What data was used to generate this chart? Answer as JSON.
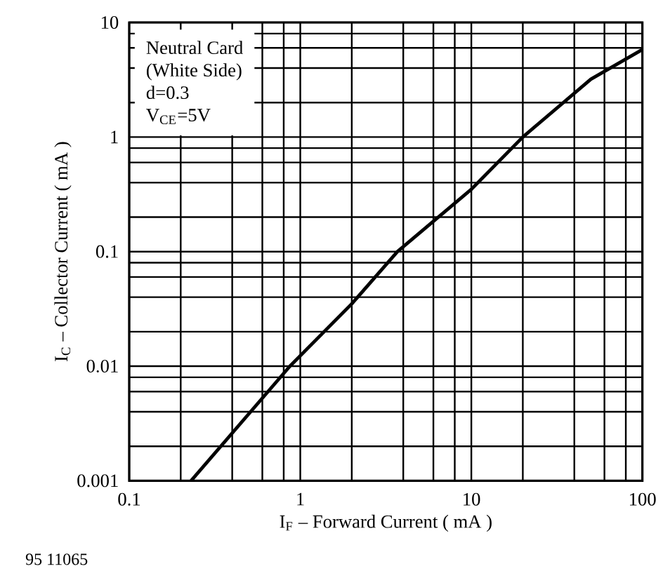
{
  "chart_data": {
    "type": "line",
    "xlabel": "I$_{F}$ – Forward Current ( mA )",
    "ylabel": "I$_{C}$ – Collector Current ( mA )",
    "annotations": [
      "Neutral Card",
      "(White Side)",
      "d=0.3",
      "V$_{CE}$=5V",
      "95 11065"
    ],
    "x": [
      0.23,
      0.87,
      2,
      3.7,
      10,
      20,
      50,
      100
    ],
    "series": [
      {
        "color": "#000000",
        "values": [
          0.001,
          0.01,
          0.035,
          0.1,
          0.35,
          1,
          3.2,
          5.8
        ]
      }
    ],
    "xlim": [
      0.1,
      100
    ],
    "ylim": [
      0.001,
      10
    ],
    "xticks": [
      0.1,
      1,
      10,
      100
    ],
    "yticks": [
      0.001,
      0.01,
      0.1,
      1,
      10
    ],
    "log": "xy",
    "grid": true
  }
}
